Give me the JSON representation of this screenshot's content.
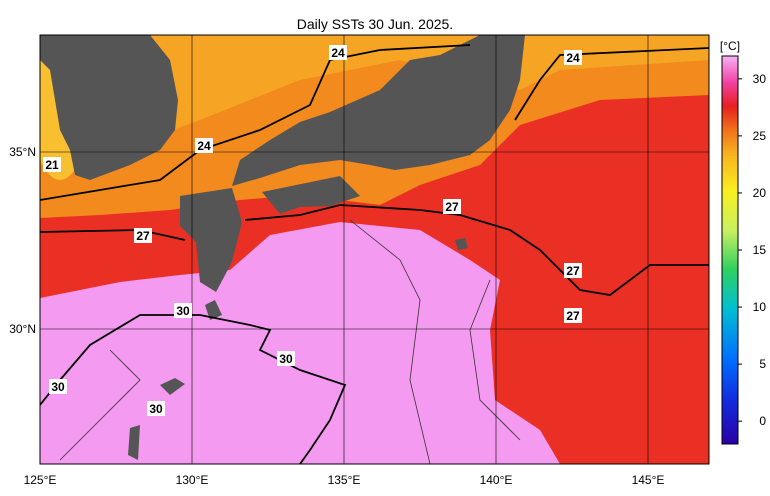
{
  "title": "Daily SSTs 30 Jun. 2025.",
  "map": {
    "x_labels": [
      "125°E",
      "130°E",
      "135°E",
      "140°E",
      "145°E"
    ],
    "y_labels": [
      "35°N",
      "30°N"
    ],
    "contour_labels": [
      "24",
      "24",
      "24",
      "21",
      "27",
      "27",
      "27",
      "27",
      "30",
      "30",
      "30",
      "30"
    ]
  },
  "colorbar": {
    "unit": "[°C]",
    "range": [
      -2,
      32
    ],
    "ticks": [
      0,
      5,
      10,
      15,
      20,
      25,
      30
    ]
  }
}
